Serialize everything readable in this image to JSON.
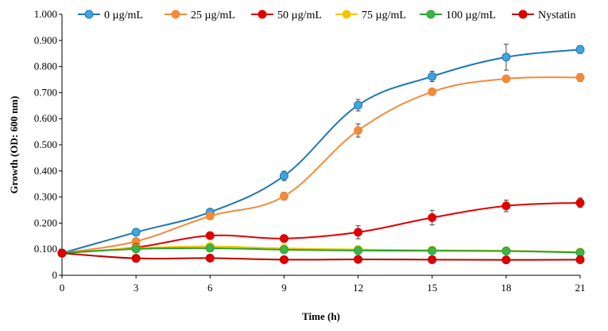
{
  "chart_data": {
    "type": "line",
    "title": "",
    "xlabel": "Time (h)",
    "ylabel": "Growth (OD: 600 nm)",
    "x": [
      0,
      3,
      6,
      9,
      12,
      15,
      18,
      21
    ],
    "xlim": [
      0,
      21
    ],
    "ylim": [
      0,
      1.0
    ],
    "x_ticks": [
      "0",
      "3",
      "6",
      "9",
      "12",
      "15",
      "18",
      "21"
    ],
    "y_ticks": [
      "0",
      "0.100",
      "0.200",
      "0.300",
      "0.400",
      "0.500",
      "0.600",
      "0.700",
      "0.800",
      "0.900",
      "1.000"
    ],
    "grid": false,
    "legend_position": "top",
    "series": [
      {
        "name": "0 µg/mL",
        "color": "#1f77b4",
        "marker_fill": "#3da5e0",
        "values": [
          0.085,
          0.165,
          0.242,
          0.381,
          0.652,
          0.762,
          0.836,
          0.865
        ],
        "errors": [
          0.005,
          0.008,
          0.008,
          0.018,
          0.022,
          0.02,
          0.05,
          0.015
        ]
      },
      {
        "name": "25 µg/mL",
        "color": "#f28a3b",
        "marker_fill": "#f28a3b",
        "values": [
          0.085,
          0.13,
          0.227,
          0.303,
          0.555,
          0.703,
          0.753,
          0.758
        ],
        "errors": [
          0.005,
          0.008,
          0.008,
          0.015,
          0.025,
          0.012,
          0.008,
          0.015
        ]
      },
      {
        "name": "50 µg/mL",
        "color": "#e00000",
        "marker_fill": "#e00000",
        "values": [
          0.085,
          0.107,
          0.152,
          0.141,
          0.165,
          0.221,
          0.266,
          0.278
        ],
        "errors": [
          0.005,
          0.006,
          0.006,
          0.006,
          0.025,
          0.028,
          0.022,
          0.018
        ]
      },
      {
        "name": "75 µg/mL",
        "color": "#f2c500",
        "marker_fill": "#f2c500",
        "values": [
          0.085,
          0.104,
          0.111,
          0.103,
          0.099,
          0.096,
          0.094,
          0.089
        ],
        "errors": [
          0.004,
          0.004,
          0.004,
          0.004,
          0.004,
          0.004,
          0.004,
          0.004
        ]
      },
      {
        "name": "100 µg/mL",
        "color": "#2ca02c",
        "marker_fill": "#3bb54a",
        "values": [
          0.085,
          0.101,
          0.104,
          0.098,
          0.095,
          0.094,
          0.093,
          0.087
        ],
        "errors": [
          0.004,
          0.004,
          0.004,
          0.004,
          0.004,
          0.004,
          0.004,
          0.004
        ]
      },
      {
        "name": "Nystatin",
        "color": "#c00000",
        "marker_fill": "#e00000",
        "values": [
          0.085,
          0.065,
          0.066,
          0.06,
          0.061,
          0.06,
          0.059,
          0.06
        ],
        "errors": [
          0.004,
          0.004,
          0.004,
          0.004,
          0.004,
          0.004,
          0.004,
          0.004
        ]
      }
    ]
  }
}
